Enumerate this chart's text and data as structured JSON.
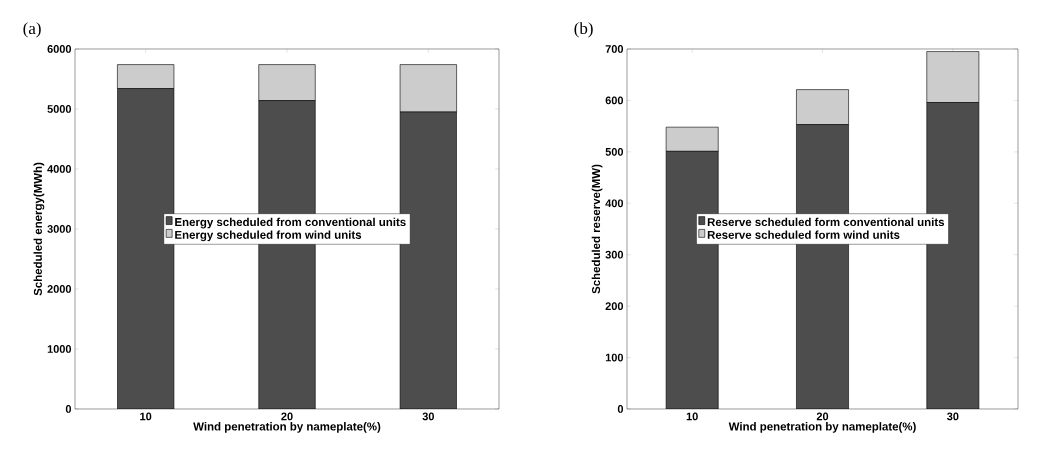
{
  "chart_data": [
    {
      "type": "bar",
      "title": "(a)",
      "xlabel": "Wind penetration by nameplate(%)",
      "ylabel": "Scheduled energy(MWh)",
      "categories": [
        "10",
        "20",
        "30"
      ],
      "stacked": true,
      "series": [
        {
          "name": "Energy scheduled from conventional units",
          "color": "#4d4d4d",
          "values": [
            5340,
            5140,
            4950
          ]
        },
        {
          "name": "Energy scheduled from wind units",
          "color": "#cccccc",
          "values": [
            400,
            600,
            790
          ]
        }
      ],
      "ylim": [
        0,
        6000
      ],
      "yticks": [
        0,
        1000,
        2000,
        3000,
        4000,
        5000,
        6000
      ],
      "grid": false,
      "legend": "center"
    },
    {
      "type": "bar",
      "title": "(b)",
      "xlabel": "Wind penetration by nameplate(%)",
      "ylabel": "Scheduled reserve(MW)",
      "categories": [
        "10",
        "20",
        "30"
      ],
      "stacked": true,
      "series": [
        {
          "name": "Reserve scheduled form conventional units",
          "color": "#4d4d4d",
          "values": [
            501,
            553,
            596
          ]
        },
        {
          "name": "Reserve scheduled form wind units",
          "color": "#cccccc",
          "values": [
            47,
            68,
            99
          ]
        }
      ],
      "ylim": [
        0,
        700
      ],
      "yticks": [
        0,
        100,
        200,
        300,
        400,
        500,
        600,
        700
      ],
      "grid": false,
      "legend": "center"
    }
  ]
}
